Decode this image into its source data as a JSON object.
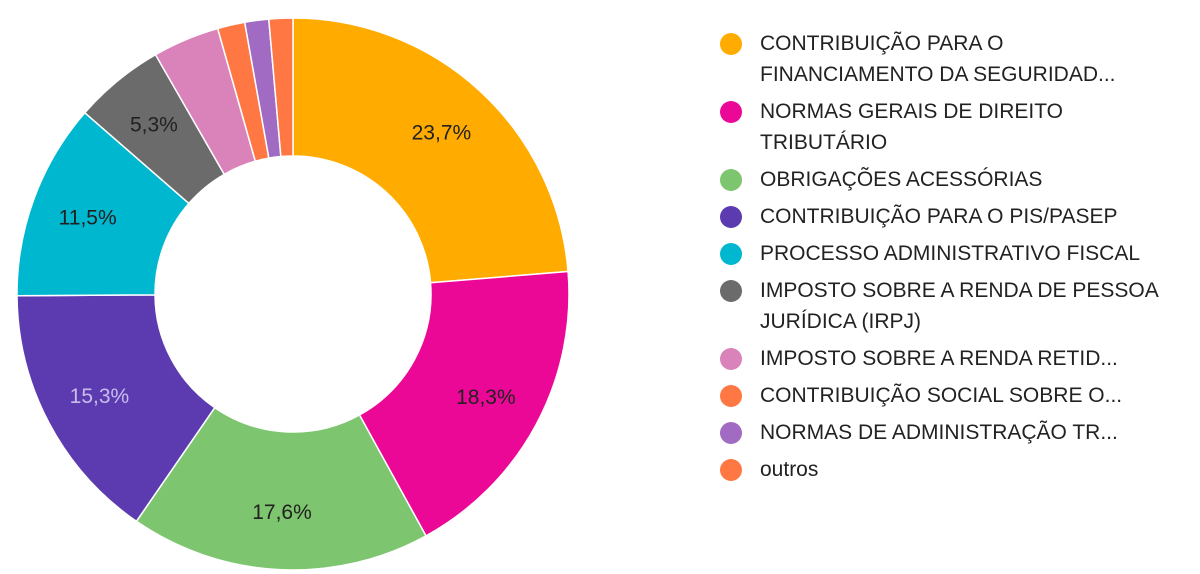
{
  "chart_data": {
    "type": "pie",
    "donut": true,
    "legend_position": "right",
    "slices": [
      {
        "label": "CONTRIBUIÇÃO PARA O FINANCIAMENTO DA SEGURIDAD...",
        "value": 23.7,
        "value_label": "23,7%",
        "color": "#FFAB00",
        "label_color": "#212121"
      },
      {
        "label": "NORMAS GERAIS DE DIREITO TRIBUTÁRIO",
        "value": 18.3,
        "value_label": "18,3%",
        "color": "#EC0896",
        "label_color": "#212121"
      },
      {
        "label": "OBRIGAÇÕES ACESSÓRIAS",
        "value": 17.6,
        "value_label": "17,6%",
        "color": "#7DC56E",
        "label_color": "#212121"
      },
      {
        "label": "CONTRIBUIÇÃO PARA O PIS/PASEP",
        "value": 15.3,
        "value_label": "15,3%",
        "color": "#5C3BB0",
        "label_color": "#C9BCEB"
      },
      {
        "label": "PROCESSO ADMINISTRATIVO FISCAL",
        "value": 11.5,
        "value_label": "11,5%",
        "color": "#00B7D0",
        "label_color": "#212121"
      },
      {
        "label": "IMPOSTO SOBRE A RENDA DE PESSOA JURÍDICA (IRPJ)",
        "value": 5.3,
        "value_label": "5,3%",
        "color": "#6B6B6B",
        "label_color": "#212121"
      },
      {
        "label": "IMPOSTO SOBRE A RENDA RETID...",
        "value": 3.9,
        "value_label": "",
        "color": "#D983BA",
        "label_color": "#212121"
      },
      {
        "label": "CONTRIBUIÇÃO SOCIAL SOBRE O...",
        "value": 1.6,
        "value_label": "",
        "color": "#FF7843",
        "label_color": "#212121"
      },
      {
        "label": "NORMAS DE ADMINISTRAÇÃO TR...",
        "value": 1.4,
        "value_label": "",
        "color": "#A26BC3",
        "label_color": "#212121"
      },
      {
        "label": "outros",
        "value": 1.4,
        "value_label": "",
        "color": "#FF7843",
        "label_color": "#212121"
      }
    ]
  }
}
